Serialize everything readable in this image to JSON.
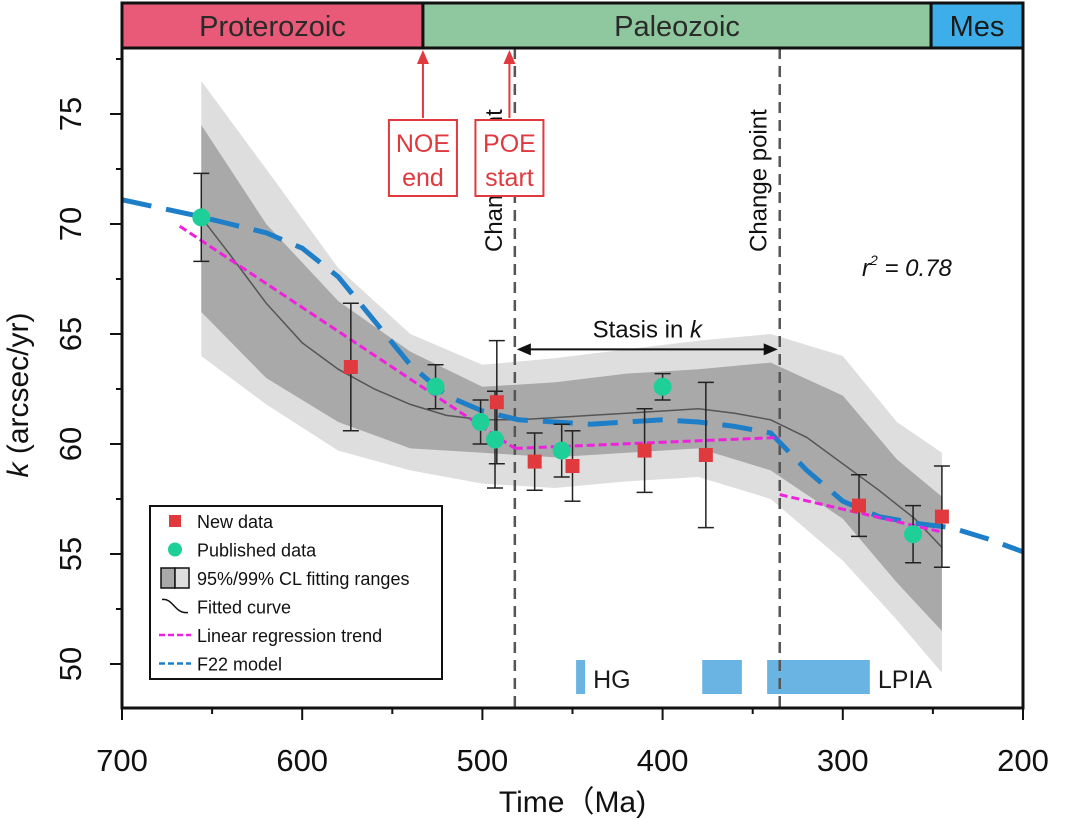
{
  "eras": [
    {
      "label": "Proterozoic",
      "color": "#e85a78",
      "text_color": "#2a2a2a",
      "from": 700,
      "to": 533
    },
    {
      "label": "Paleozoic",
      "color": "#8fc79f",
      "text_color": "#2a2a2a",
      "from": 533,
      "to": 251
    },
    {
      "label": "Mes",
      "color": "#3daee9",
      "text_color": "#1a1a1a",
      "from": 251,
      "to": 200
    }
  ],
  "annotations": {
    "noe": {
      "line1": "NOE",
      "line2": "end",
      "x": 533
    },
    "poe": {
      "line1": "POE",
      "line2": "start",
      "x": 485
    },
    "change_points": [
      {
        "label": "Change point",
        "x": 482
      },
      {
        "label": "Change point",
        "x": 335
      }
    ],
    "stasis": {
      "text": "Stasis in",
      "symbol": "k",
      "from": 482,
      "to": 335,
      "y": 64.3
    },
    "r2": {
      "symbol": "r",
      "sup": "2",
      "rest": " = 0.78"
    },
    "glaciations": [
      {
        "label": "HG",
        "from": 448,
        "to": 443
      },
      {
        "label": "",
        "from": 378,
        "to": 356
      },
      {
        "label": "LPIA",
        "from": 342,
        "to": 285
      }
    ],
    "glaciation_color": "#69b4e3"
  },
  "legend": {
    "items": [
      {
        "key": "new",
        "label": "New data"
      },
      {
        "key": "pub",
        "label": "Published data"
      },
      {
        "key": "cl",
        "label": "95%/99% CL fitting ranges"
      },
      {
        "key": "fit",
        "label": "Fitted curve"
      },
      {
        "key": "lin",
        "label": "Linear  regression trend"
      },
      {
        "key": "f22",
        "label": "F22 model"
      }
    ]
  },
  "chart_data": {
    "type": "scatter",
    "xlabel": "Time（Ma)",
    "ylabel_symbol": "k",
    "ylabel_rest": " (arcsec/yr)",
    "xlim": [
      700,
      200
    ],
    "ylim": [
      48,
      78
    ],
    "x_ticks": [
      700,
      600,
      500,
      400,
      300,
      200
    ],
    "y_ticks": [
      50,
      55,
      60,
      65,
      70,
      75
    ],
    "colors": {
      "new": "#e0393e",
      "published": "#1ecf98",
      "fit": "#555555",
      "linear": "#ee22dd",
      "f22": "#1e7fc8",
      "ci99": "#dedede",
      "ci95": "#a9a9a9"
    },
    "series": [
      {
        "name": "New data",
        "points": [
          {
            "x": 573,
            "y": 63.5,
            "err": 2.9
          },
          {
            "x": 492,
            "y": 61.9,
            "err": 2.8
          },
          {
            "x": 471,
            "y": 59.2,
            "err": 1.3
          },
          {
            "x": 450,
            "y": 59.0,
            "err": 1.6
          },
          {
            "x": 410,
            "y": 59.7,
            "err": 1.9
          },
          {
            "x": 376,
            "y": 59.5,
            "err": 3.3
          },
          {
            "x": 291,
            "y": 57.2,
            "err": 1.4
          },
          {
            "x": 245,
            "y": 56.7,
            "err": 2.3
          }
        ]
      },
      {
        "name": "Published data",
        "points": [
          {
            "x": 656,
            "y": 70.3,
            "err": 2.0
          },
          {
            "x": 526,
            "y": 62.6,
            "err": 1.0
          },
          {
            "x": 501,
            "y": 61.0,
            "err": 1.0
          },
          {
            "x": 493,
            "y": 60.2,
            "err": 2.2
          },
          {
            "x": 456,
            "y": 59.7,
            "err": 1.2
          },
          {
            "x": 400,
            "y": 62.6,
            "err": 0.6
          },
          {
            "x": 261,
            "y": 55.9,
            "err": 1.3
          }
        ]
      },
      {
        "name": "Fitted curve",
        "x": [
          656,
          640,
          620,
          600,
          580,
          560,
          540,
          520,
          500,
          480,
          460,
          440,
          420,
          400,
          380,
          360,
          340,
          320,
          300,
          280,
          260,
          245
        ],
        "y": [
          70.3,
          68.6,
          66.4,
          64.6,
          63.4,
          62.5,
          61.8,
          61.3,
          61.1,
          61.1,
          61.2,
          61.3,
          61.4,
          61.5,
          61.6,
          61.4,
          61.1,
          60.3,
          59.1,
          57.9,
          56.6,
          55.3
        ]
      },
      {
        "name": "95% CL range",
        "x": [
          656,
          620,
          580,
          540,
          500,
          460,
          420,
          380,
          340,
          300,
          270,
          245
        ],
        "upper": [
          74.5,
          70.0,
          66.5,
          64.2,
          62.6,
          62.8,
          63.2,
          63.4,
          63.7,
          62.2,
          59.3,
          57.6
        ],
        "lower": [
          66.0,
          63.0,
          61.0,
          59.8,
          59.6,
          59.4,
          59.6,
          59.8,
          58.8,
          56.6,
          53.7,
          51.5
        ]
      },
      {
        "name": "99% CL range",
        "x": [
          656,
          620,
          580,
          540,
          500,
          460,
          420,
          380,
          340,
          300,
          270,
          245
        ],
        "upper": [
          76.5,
          72.5,
          68.0,
          65.0,
          63.6,
          63.9,
          64.3,
          64.7,
          65.0,
          64.0,
          61.0,
          59.6
        ],
        "lower": [
          64.0,
          61.8,
          59.7,
          58.8,
          58.2,
          58.0,
          58.3,
          58.5,
          57.5,
          54.7,
          52.0,
          49.6
        ]
      },
      {
        "name": "Linear regression trend",
        "segments": [
          {
            "x": [
              668,
              482
            ],
            "y": [
              69.9,
              59.8
            ]
          },
          {
            "x": [
              482,
              335
            ],
            "y": [
              59.8,
              60.3
            ]
          },
          {
            "x": [
              335,
              245
            ],
            "y": [
              57.7,
              56.0
            ]
          }
        ]
      },
      {
        "name": "F22 model",
        "x": [
          700,
          660,
          640,
          620,
          600,
          580,
          560,
          540,
          520,
          500,
          480,
          460,
          440,
          420,
          400,
          380,
          360,
          340,
          320,
          300,
          280,
          260,
          240,
          220,
          200
        ],
        "y": [
          71.1,
          70.4,
          70.0,
          69.6,
          68.9,
          67.6,
          65.6,
          63.6,
          62.2,
          61.5,
          61.1,
          61.0,
          60.9,
          61.0,
          61.1,
          61.0,
          60.8,
          60.5,
          58.8,
          57.4,
          56.7,
          56.4,
          56.2,
          55.7,
          55.1
        ]
      }
    ]
  }
}
